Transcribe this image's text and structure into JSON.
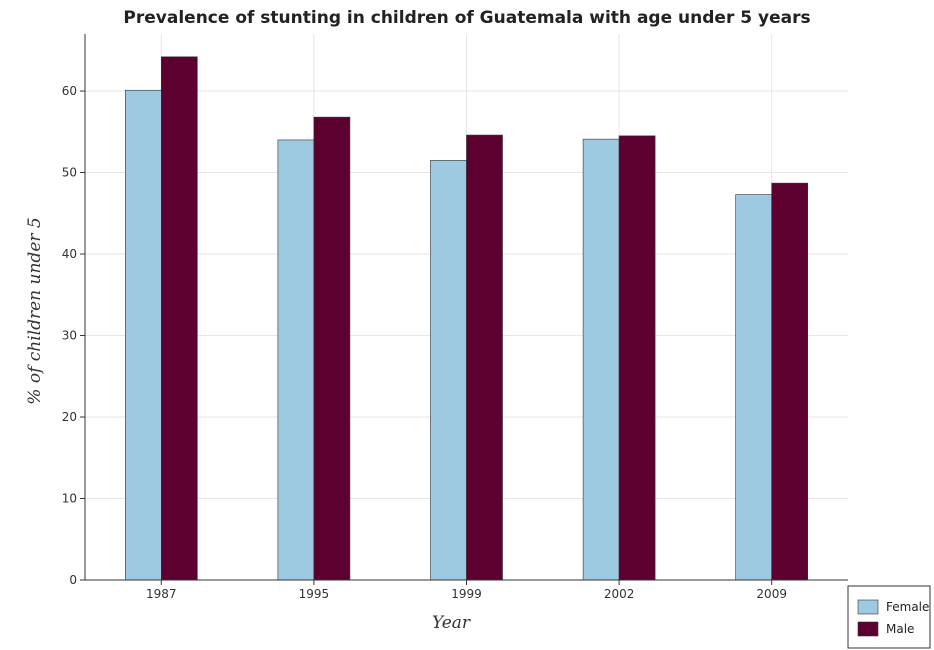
{
  "chart_data": {
    "type": "bar",
    "title": "Prevalence of stunting in children of Guatemala with age under 5 years",
    "xlabel": "Year",
    "ylabel": "% of children under 5",
    "categories": [
      "1987",
      "1995",
      "1999",
      "2002",
      "2009"
    ],
    "series": [
      {
        "name": "Female",
        "color": "#9ecae1",
        "values": [
          60.1,
          54.0,
          51.5,
          54.1,
          47.3
        ]
      },
      {
        "name": "Male",
        "color": "#5c0030",
        "values": [
          64.2,
          56.8,
          54.6,
          54.5,
          48.7
        ]
      }
    ],
    "ylim": [
      0,
      67
    ],
    "yticks": [
      0,
      10,
      20,
      30,
      40,
      50,
      60
    ],
    "grid": true,
    "legend_position": "bottom-right"
  }
}
